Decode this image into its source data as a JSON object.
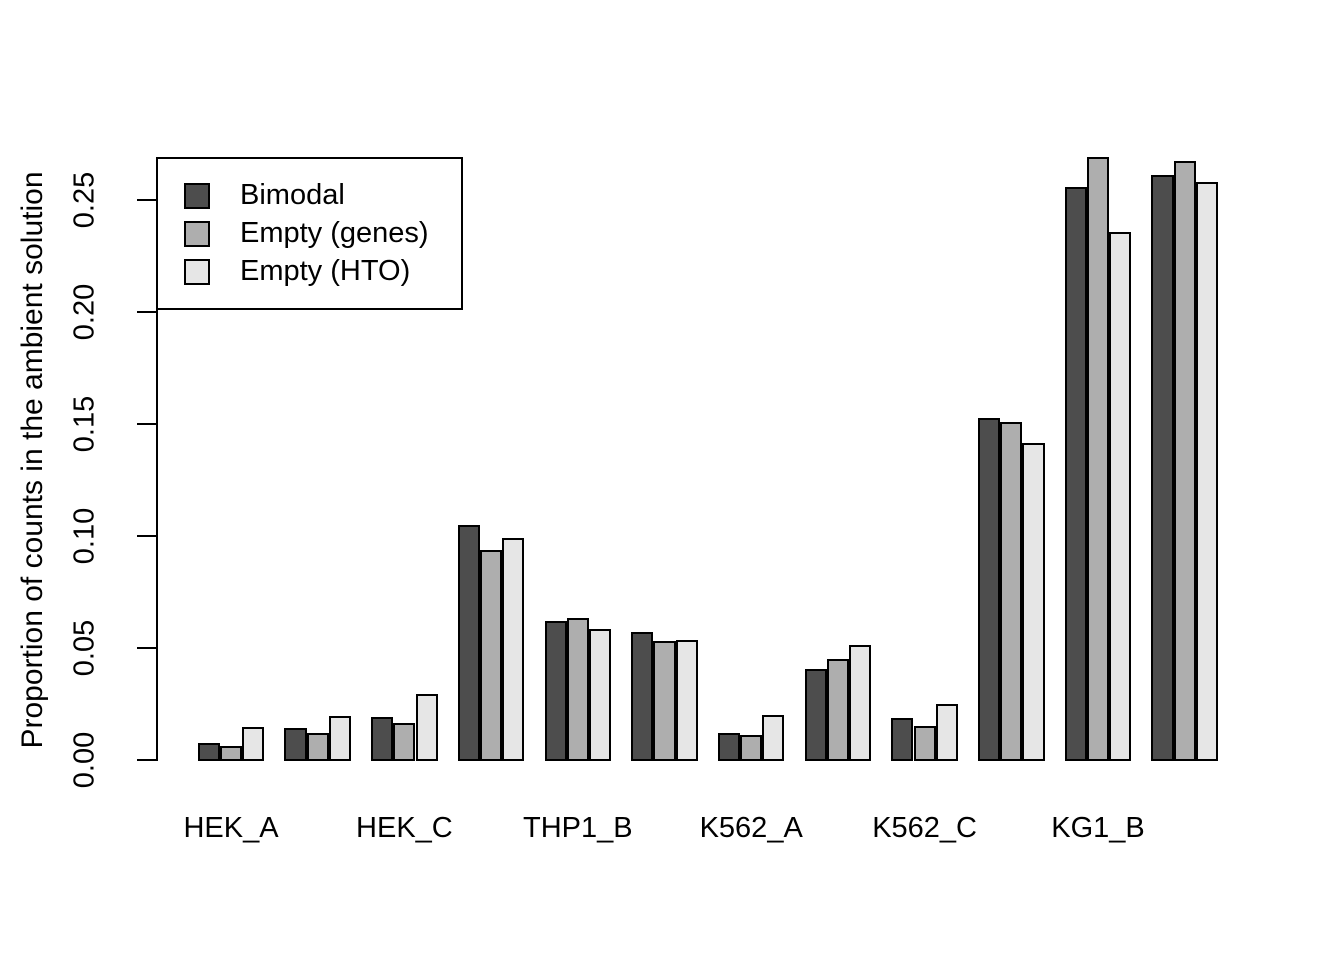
{
  "chart_data": {
    "type": "bar",
    "title": "",
    "xlabel": "",
    "ylabel": "Proportion of counts in the ambient solution",
    "ylim": [
      0,
      0.27
    ],
    "yticks": [
      0.0,
      0.05,
      0.1,
      0.15,
      0.2,
      0.25
    ],
    "ytick_labels": [
      "0.00",
      "0.05",
      "0.10",
      "0.15",
      "0.20",
      "0.25"
    ],
    "grid": false,
    "background_color": "#ffffff",
    "bar_border_color": "#000000",
    "axis_color": "#000000",
    "legend": {
      "position": "top-left",
      "border": true,
      "entries": [
        {
          "label": "Bimodal",
          "color": "#4D4D4D"
        },
        {
          "label": "Empty (genes)",
          "color": "#AEAEAE"
        },
        {
          "label": "Empty (HTO)",
          "color": "#E6E6E6"
        }
      ]
    },
    "series_names": [
      "Bimodal",
      "Empty (genes)",
      "Empty (HTO)"
    ],
    "groups": [
      {
        "tick_label": "HEK_A",
        "values": [
          0.0073,
          0.0058,
          0.0143
        ]
      },
      {
        "tick_label": "",
        "values": [
          0.014,
          0.0115,
          0.0192
        ]
      },
      {
        "tick_label": "HEK_C",
        "values": [
          0.0188,
          0.0159,
          0.0289
        ]
      },
      {
        "tick_label": "",
        "values": [
          0.1043,
          0.0933,
          0.0988
        ]
      },
      {
        "tick_label": "THP1_B",
        "values": [
          0.0616,
          0.0628,
          0.0579
        ]
      },
      {
        "tick_label": "",
        "values": [
          0.0567,
          0.0527,
          0.0531
        ]
      },
      {
        "tick_label": "K562_A",
        "values": [
          0.0115,
          0.0108,
          0.0196
        ]
      },
      {
        "tick_label": "",
        "values": [
          0.0403,
          0.0445,
          0.051
        ]
      },
      {
        "tick_label": "K562_C",
        "values": [
          0.0182,
          0.0147,
          0.0247
        ]
      },
      {
        "tick_label": "",
        "values": [
          0.1522,
          0.1506,
          0.1412
        ]
      },
      {
        "tick_label": "KG1_B",
        "values": [
          0.2555,
          0.2689,
          0.2351
        ]
      },
      {
        "tick_label": "",
        "values": [
          0.2607,
          0.2671,
          0.2577
        ]
      }
    ]
  }
}
